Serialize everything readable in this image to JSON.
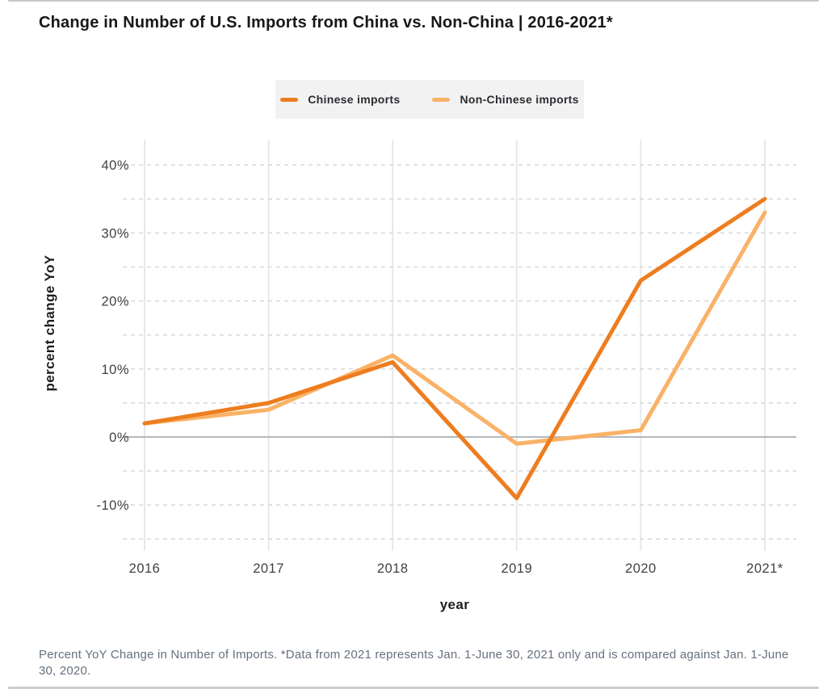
{
  "page": {
    "footnote": "Percent YoY Change in Number of Imports. *Data from 2021 represents Jan. 1-June 30, 2021 only and is compared against Jan. 1-June 30, 2020."
  },
  "chart_data": {
    "type": "line",
    "title": "Change in Number of U.S. Imports from China vs. Non-China | 2016-2021*",
    "xlabel": "year",
    "ylabel": "percent change YoY",
    "categories": [
      "2016",
      "2017",
      "2018",
      "2019",
      "2020",
      "2021*"
    ],
    "series": [
      {
        "name": "Chinese imports",
        "color": "#ED7D1F",
        "values": [
          2,
          5,
          11,
          -9,
          23,
          35
        ]
      },
      {
        "name": "Non-Chinese imports",
        "color": "#F9B266",
        "values": [
          2,
          4,
          12,
          -1,
          1,
          33
        ]
      }
    ],
    "yticks": [
      {
        "value": 40,
        "label": "40%"
      },
      {
        "value": 30,
        "label": "30%"
      },
      {
        "value": 20,
        "label": "20%"
      },
      {
        "value": 10,
        "label": "10%"
      },
      {
        "value": 0,
        "label": "0%"
      },
      {
        "value": -10,
        "label": "-10%"
      }
    ],
    "ylim": [
      -17,
      44
    ],
    "grid": {
      "dashed_step": 5,
      "dashed_range": [
        -15,
        40
      ],
      "zero_line": true,
      "vertical_gridlines": "per-category"
    },
    "legend": {
      "position": "top-center",
      "bg": "#F2F2F3"
    }
  }
}
